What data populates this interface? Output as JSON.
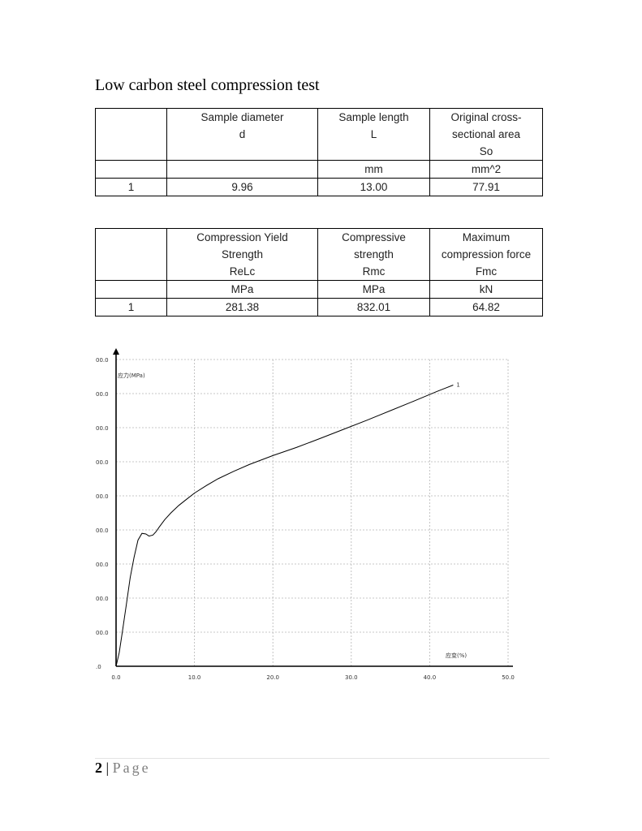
{
  "title": "Low carbon steel compression test",
  "table1": {
    "headers": [
      {
        "lines": []
      },
      {
        "lines": [
          "Sample diameter",
          "d"
        ]
      },
      {
        "lines": [
          "Sample length",
          "L"
        ]
      },
      {
        "lines": [
          "Original cross-",
          "sectional area",
          "So"
        ]
      }
    ],
    "units": [
      "",
      "",
      "mm",
      "mm^2"
    ],
    "rows": [
      [
        "1",
        "9.96",
        "13.00",
        "77.91"
      ]
    ]
  },
  "table2": {
    "headers": [
      {
        "lines": []
      },
      {
        "lines": [
          "Compression Yield",
          "Strength",
          "ReLc"
        ]
      },
      {
        "lines": [
          "Compressive",
          "strength",
          "Rmc"
        ]
      },
      {
        "lines": [
          "Maximum",
          "compression force",
          "Fmc"
        ]
      }
    ],
    "units": [
      "",
      "MPa",
      "MPa",
      "kN"
    ],
    "rows": [
      [
        "1",
        "281.38",
        "832.01",
        "64.82"
      ]
    ]
  },
  "chart_data": {
    "type": "line",
    "ylabel": "应力(MPa)",
    "xlabel": "应变(%)",
    "x_ticks": [
      "0.0",
      "10.0",
      "20.0",
      "30.0",
      "40.0",
      "50.0"
    ],
    "y_ticks": [
      ".0",
      "00.0",
      "00.0",
      "00.0",
      "00.0",
      "00.0",
      "00.0",
      "00.0",
      "00.0",
      "00.0"
    ],
    "xlim": [
      0,
      50
    ],
    "ylim": [
      0,
      9
    ],
    "grid": true,
    "series": [
      {
        "name": "1",
        "color": "#000000",
        "x": [
          0,
          0.4,
          0.8,
          1.3,
          1.8,
          2.3,
          2.8,
          3.3,
          3.8,
          4.2,
          4.7,
          5.1,
          5.5,
          6.2,
          7.0,
          8.0,
          9.0,
          10.0,
          11.5,
          13.0,
          15.0,
          17.0,
          20.0,
          23.0,
          26.0,
          29.0,
          32.0,
          35.0,
          38.0,
          41.0,
          42.0,
          43.0
        ],
        "y": [
          0,
          0.4,
          1.0,
          1.8,
          2.6,
          3.2,
          3.7,
          3.9,
          3.88,
          3.82,
          3.85,
          3.95,
          4.08,
          4.3,
          4.5,
          4.72,
          4.9,
          5.08,
          5.3,
          5.5,
          5.72,
          5.92,
          6.18,
          6.42,
          6.68,
          6.95,
          7.22,
          7.5,
          7.78,
          8.07,
          8.16,
          8.25
        ]
      }
    ]
  },
  "footer": {
    "page_number": "2",
    "separator": "|",
    "page_label": "Page"
  }
}
